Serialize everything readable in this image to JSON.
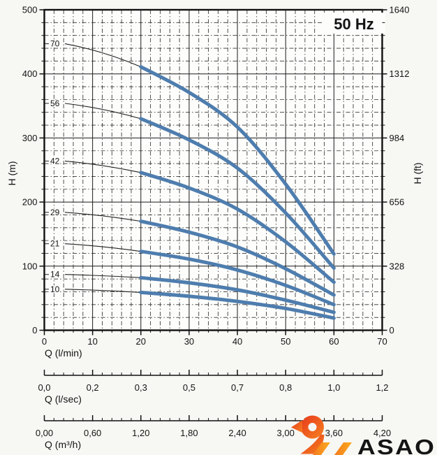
{
  "chart_data": {
    "type": "line",
    "title": "50 Hz",
    "y_axis_left": {
      "label": "H (m)",
      "min": 0,
      "max": 500,
      "major_tick_step": 100,
      "minor_tick_step": 20,
      "tick_labels": [
        "0",
        "100",
        "200",
        "300",
        "400",
        "500"
      ]
    },
    "y_axis_right": {
      "label": "H (ft)",
      "tick_labels": [
        "0",
        "328",
        "656",
        "984",
        "1312",
        "1640"
      ]
    },
    "x_axes": [
      {
        "label": "Q (l/min)",
        "min": 0,
        "max": 70,
        "major_tick_step": 10,
        "minor_tick_step": 2,
        "tick_labels": [
          "0",
          "10",
          "20",
          "30",
          "40",
          "50",
          "60",
          "70"
        ]
      },
      {
        "label": "Q (l/sec)",
        "tick_labels": [
          "0,0",
          "0,2",
          "0,3",
          "0,5",
          "0,7",
          "0,8",
          "1,0",
          "1,2"
        ]
      },
      {
        "label": "Q (m³/h)",
        "tick_labels": [
          "0,00",
          "0,60",
          "1,20",
          "1,80",
          "2,40",
          "3,00",
          "3,60",
          "4,20"
        ]
      }
    ],
    "grid": true,
    "curve_color": "#4e7dae",
    "leader_color": "#222222",
    "series": [
      {
        "name": "70",
        "shutoff_head_m": 447,
        "points": [
          [
            20,
            411
          ],
          [
            30,
            371
          ],
          [
            40,
            317
          ],
          [
            50,
            228
          ],
          [
            60,
            119
          ]
        ]
      },
      {
        "name": "56",
        "shutoff_head_m": 354,
        "points": [
          [
            20,
            330
          ],
          [
            30,
            297
          ],
          [
            40,
            253
          ],
          [
            50,
            183
          ],
          [
            60,
            97
          ]
        ]
      },
      {
        "name": "42",
        "shutoff_head_m": 264,
        "points": [
          [
            20,
            246
          ],
          [
            30,
            222
          ],
          [
            40,
            189
          ],
          [
            50,
            138
          ],
          [
            60,
            75
          ]
        ]
      },
      {
        "name": "29",
        "shutoff_head_m": 184,
        "points": [
          [
            20,
            170
          ],
          [
            30,
            153
          ],
          [
            40,
            130
          ],
          [
            50,
            96
          ],
          [
            60,
            55
          ]
        ]
      },
      {
        "name": "21",
        "shutoff_head_m": 135,
        "points": [
          [
            20,
            123
          ],
          [
            30,
            111
          ],
          [
            40,
            94
          ],
          [
            50,
            70
          ],
          [
            60,
            40
          ]
        ]
      },
      {
        "name": "14",
        "shutoff_head_m": 87,
        "points": [
          [
            20,
            82
          ],
          [
            30,
            74
          ],
          [
            40,
            63
          ],
          [
            50,
            47
          ],
          [
            60,
            28
          ]
        ]
      },
      {
        "name": "10",
        "shutoff_head_m": 64,
        "points": [
          [
            20,
            59
          ],
          [
            30,
            53
          ],
          [
            40,
            45
          ],
          [
            50,
            34
          ],
          [
            60,
            19
          ]
        ]
      }
    ]
  },
  "logo": {
    "text": "ASAO",
    "text_color": "#1c3e6e",
    "mark_color_red": "#e83d1d",
    "mark_color_orange": "#f58220",
    "mark_color_amber": "#fbaa1c"
  }
}
